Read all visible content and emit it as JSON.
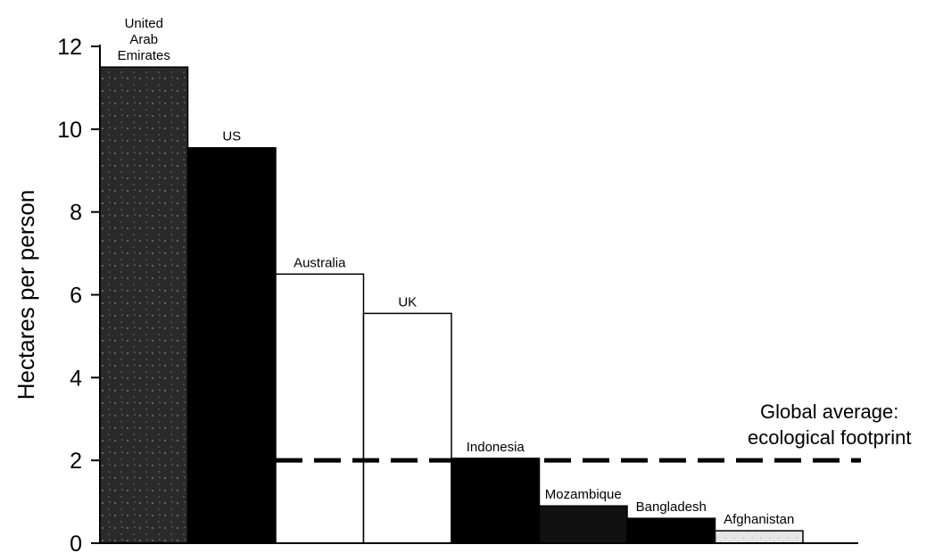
{
  "chart_data": {
    "type": "bar",
    "title": "",
    "xlabel": "",
    "ylabel": "Hectares per person",
    "ylim": [
      0,
      12
    ],
    "yticks": [
      0,
      2,
      4,
      6,
      8,
      10,
      12
    ],
    "grid": false,
    "legend": "none",
    "categories": [
      "United\nArab\nEmirates",
      "US",
      "Australia",
      "UK",
      "Indonesia",
      "Mozambique",
      "Bangladesh",
      "Afghanistan"
    ],
    "values": [
      11.5,
      9.55,
      6.5,
      5.55,
      2.05,
      0.9,
      0.6,
      0.3
    ],
    "bar_fills": [
      "#2a2a2a",
      "#000000",
      "#ffffff",
      "#ffffff",
      "#000000",
      "#111111",
      "#000000",
      "#e6e6e6"
    ],
    "reference_line": {
      "value": 2,
      "style": "dashed",
      "label_lines": [
        "Global average:",
        "ecological footprint"
      ]
    }
  }
}
